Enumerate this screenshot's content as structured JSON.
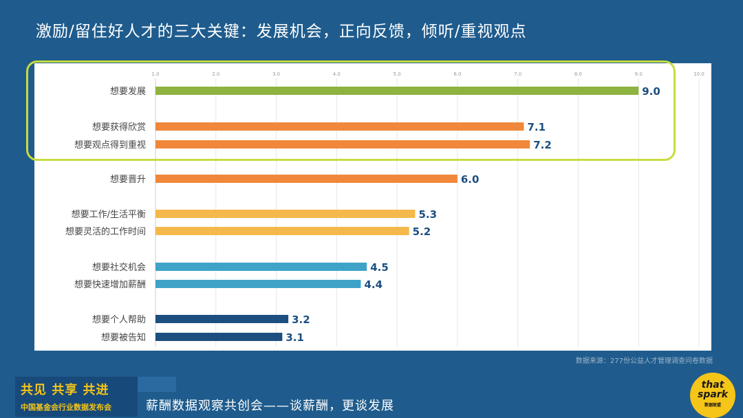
{
  "header": {
    "title": "激励/留住好人才的三大关键：发展机会，正向反馈，倾听/重视观点"
  },
  "chart_data": {
    "type": "bar",
    "orientation": "horizontal",
    "title": "",
    "xlabel": "",
    "ylabel": "",
    "xlim": [
      1.0,
      10.0
    ],
    "x_ticks": [
      "1.0",
      "2.0",
      "3.0",
      "4.0",
      "5.0",
      "6.0",
      "7.0",
      "8.0",
      "9.0",
      "10.0"
    ],
    "grid": true,
    "categories": [
      "想要发展",
      "想要获得欣赏",
      "想要观点得到重视",
      "想要晋升",
      "想要工作/生活平衡",
      "想要灵活的工作时间",
      "想要社交机会",
      "想要快速增加薪酬",
      "想要个人帮助",
      "想要被告知"
    ],
    "values": [
      9.0,
      7.1,
      7.2,
      6.0,
      5.3,
      5.2,
      4.5,
      4.4,
      3.2,
      3.1
    ],
    "value_labels": [
      "9.0",
      "7.1",
      "7.2",
      "6.0",
      "5.3",
      "5.2",
      "4.5",
      "4.4",
      "3.2",
      "3.1"
    ],
    "bar_colors": [
      "#8db340",
      "#f0873a",
      "#f0873a",
      "#f0873a",
      "#f5b84a",
      "#f5b84a",
      "#3fa3c8",
      "#3fa3c8",
      "#1c4f80",
      "#1c4f80"
    ],
    "highlighted_categories": [
      "想要发展",
      "想要获得欣赏",
      "想要观点得到重视"
    ],
    "highlight_color": "#c8dc3c",
    "value_label_color": "#1c4f80"
  },
  "source": "数据来源：277份公益人才管理调查问卷数据",
  "footer": {
    "slogan": "共见 共享 共进",
    "org": "中国基金会行业数据发布会",
    "subtitle": "薪酬数据观察共创会——谈薪酬，更谈发展"
  },
  "logo": {
    "line1": "that",
    "line2": "spark",
    "line3": "数据联盟"
  }
}
